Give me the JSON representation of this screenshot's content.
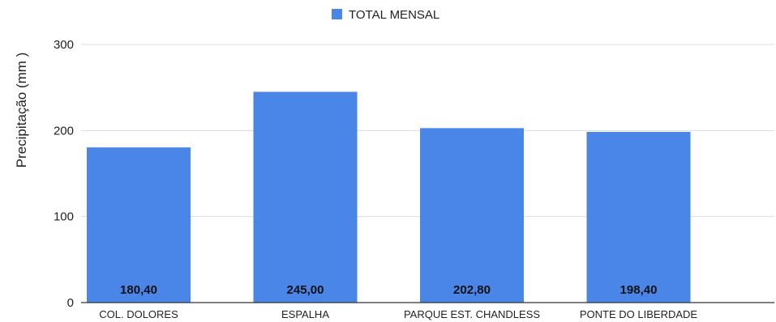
{
  "chart_data": {
    "type": "bar",
    "categories": [
      "COL. DOLORES",
      "ESPALHA",
      "PARQUE EST. CHANDLESS",
      "PONTE DO LIBERDADE"
    ],
    "series": [
      {
        "name": "TOTAL MENSAL",
        "values": [
          180.4,
          245.0,
          202.8,
          198.4
        ]
      }
    ],
    "data_labels": [
      "180,40",
      "245,00",
      "202,80",
      "198,40"
    ],
    "ylabel": "Precipitação (mm )",
    "xlabel": "",
    "ylim": [
      0,
      300
    ],
    "yticks": [
      0,
      100,
      200,
      300
    ],
    "ytick_labels": [
      "0",
      "100",
      "200",
      "300"
    ],
    "grid": true,
    "legend_position": "top-center",
    "colors": {
      "bar": "#4a86e8",
      "grid": "#dddddd",
      "axis": "#333333"
    }
  }
}
